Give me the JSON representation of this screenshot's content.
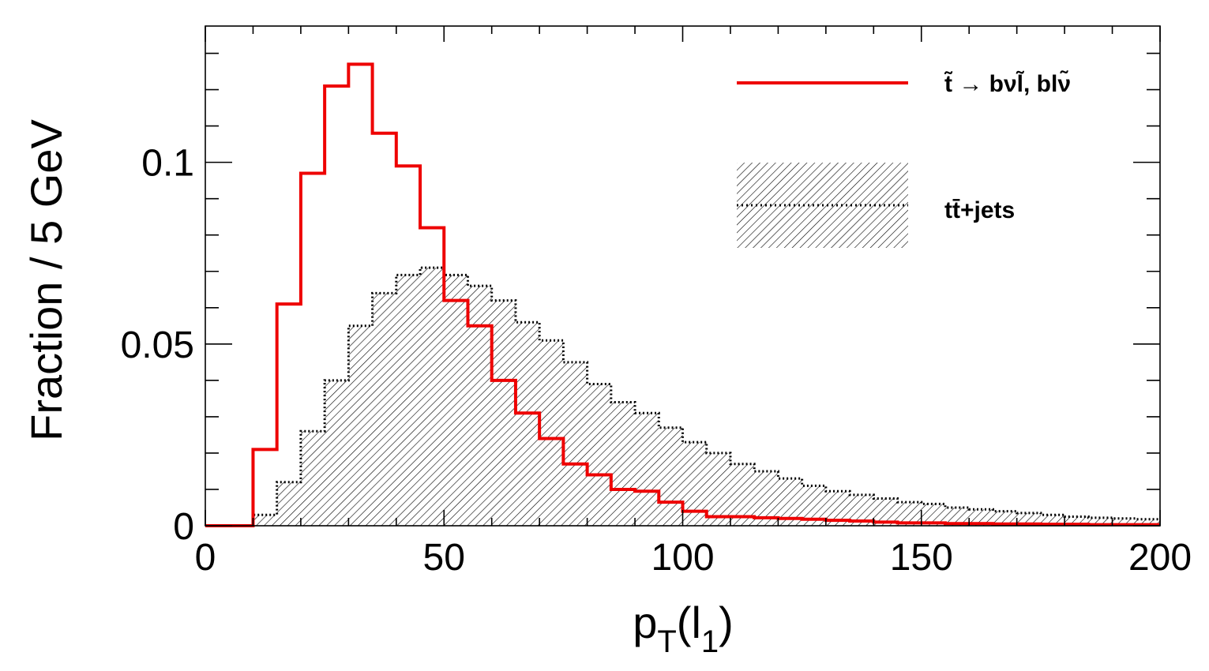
{
  "chart_data": {
    "type": "histogram",
    "title": "",
    "xlabel": {
      "main": "p",
      "sub": "T",
      "paren_main": "l",
      "paren_sub": "1"
    },
    "ylabel": "Fraction / 5 GeV",
    "xlim": [
      0,
      200
    ],
    "ylim": [
      0,
      0.1375
    ],
    "bin_width": 5,
    "bin_edges_start": 0,
    "x_ticks": [
      0,
      50,
      100,
      150,
      200
    ],
    "x_tick_labels": [
      "0",
      "50",
      "100",
      "150",
      "200"
    ],
    "y_ticks": [
      0,
      0.05,
      0.1
    ],
    "y_tick_labels": [
      "0",
      "0.05",
      "0.1"
    ],
    "grid": false,
    "legend_position": "top-right",
    "series": [
      {
        "name": "t̃ → bνl̃, blν̃",
        "legend_label": "t̃ → bνl̃, blν̃",
        "style": "line",
        "color": "#ee0000",
        "values": [
          0,
          0,
          0.021,
          0.061,
          0.097,
          0.121,
          0.127,
          0.108,
          0.099,
          0.082,
          0.062,
          0.055,
          0.04,
          0.031,
          0.024,
          0.017,
          0.014,
          0.01,
          0.0095,
          0.0065,
          0.004,
          0.0025,
          0.0025,
          0.0022,
          0.002,
          0.0018,
          0.0015,
          0.0013,
          0.001,
          0.0008,
          0.0008,
          0.0006,
          0.0006,
          0.0005,
          0.0005,
          0.0004,
          0.0004,
          0.0003,
          0.0003,
          0.0003
        ]
      },
      {
        "name": "tt̄+jets",
        "legend_label": "tt̄+jets",
        "style": "hatched",
        "color": "#000000",
        "values": [
          0,
          0,
          0.003,
          0.012,
          0.026,
          0.04,
          0.055,
          0.064,
          0.069,
          0.071,
          0.069,
          0.066,
          0.062,
          0.056,
          0.051,
          0.045,
          0.039,
          0.034,
          0.031,
          0.027,
          0.023,
          0.02,
          0.017,
          0.015,
          0.013,
          0.011,
          0.0095,
          0.0085,
          0.0075,
          0.0065,
          0.006,
          0.005,
          0.0045,
          0.004,
          0.0035,
          0.003,
          0.0025,
          0.0022,
          0.002,
          0.0018
        ]
      }
    ]
  }
}
